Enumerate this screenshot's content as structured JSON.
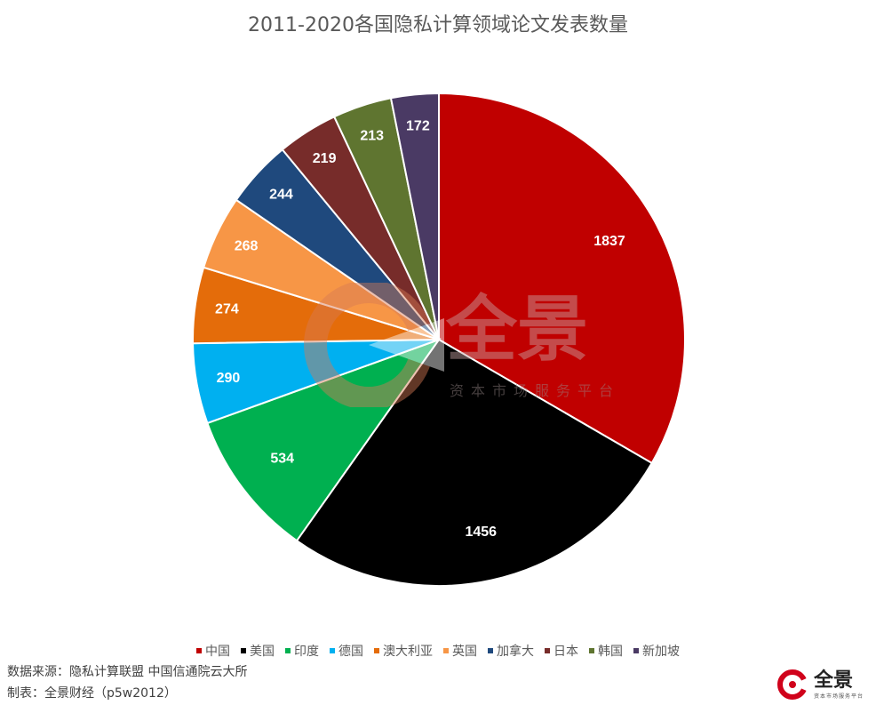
{
  "chart_data": {
    "type": "pie",
    "title": "2011-2020各国隐私计算领域论文发表数量",
    "categories": [
      "中国",
      "美国",
      "印度",
      "德国",
      "澳大利亚",
      "英国",
      "加拿大",
      "日本",
      "韩国",
      "新加坡"
    ],
    "values": [
      1837,
      1456,
      534,
      290,
      274,
      268,
      244,
      219,
      213,
      172
    ],
    "colors": [
      "#C00000",
      "#000000",
      "#00B050",
      "#00B0F0",
      "#E46C0A",
      "#F79646",
      "#1F497D",
      "#772C2A",
      "#5F7530",
      "#4A3A64"
    ],
    "data_labels": true,
    "legend_position": "bottom",
    "start_angle": "12 o'clock",
    "direction": "clockwise"
  },
  "footer": {
    "source": "数据来源：隐私计算联盟 中国信通院云大所",
    "maker": "制表：全景财经（p5w2012）"
  },
  "watermark": {
    "main": "全景",
    "sub": "资本市场服务平台"
  },
  "brand": {
    "name": "全景",
    "sub": "资本市场服务平台",
    "icon": "p5w-logo-icon"
  }
}
